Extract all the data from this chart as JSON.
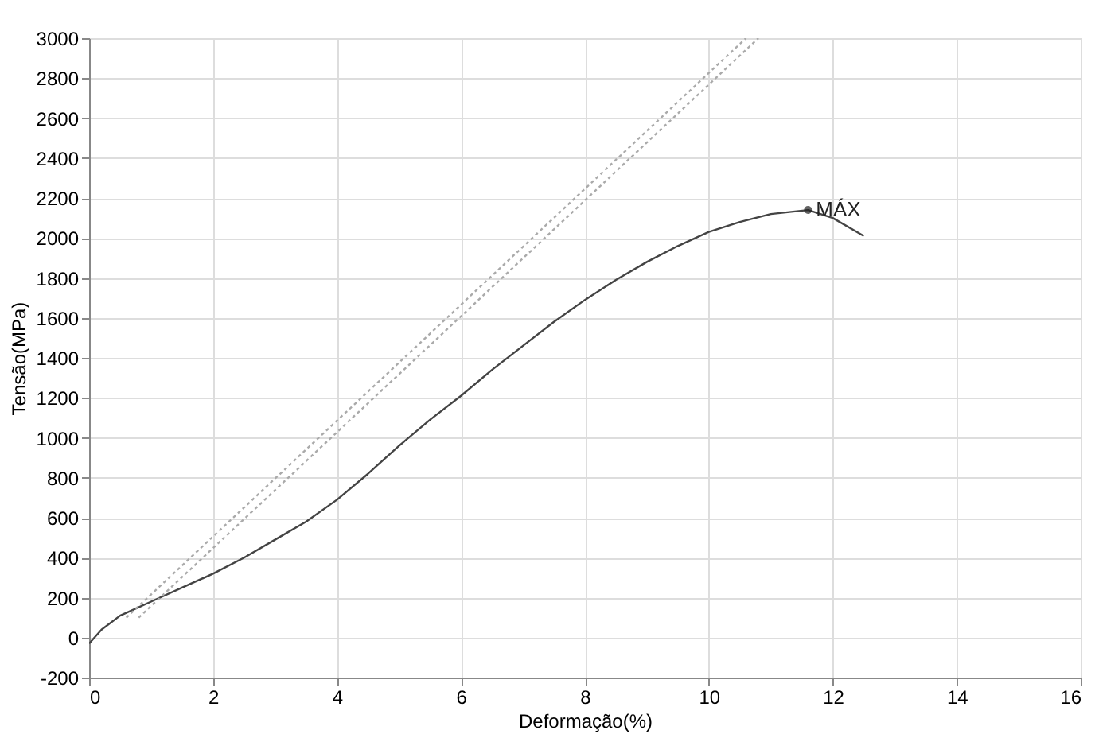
{
  "chart_data": {
    "type": "line",
    "xlabel": "Deformação(%)",
    "ylabel": "Tensão(MPa)",
    "xlim": [
      0,
      16
    ],
    "xticks": [
      0,
      2,
      4,
      6,
      8,
      10,
      12,
      14,
      16
    ],
    "ylim": [
      -200,
      3000
    ],
    "yticks": [
      -200,
      0,
      200,
      400,
      600,
      800,
      1000,
      1200,
      1400,
      1600,
      1800,
      2000,
      2200,
      2400,
      2600,
      2800,
      3000
    ],
    "grid": true,
    "marker": "none",
    "series": [
      {
        "color": "#444444",
        "line_style": "solid",
        "x": [
          0,
          0.2,
          0.5,
          1,
          1.5,
          2,
          2.5,
          3,
          3.5,
          4,
          4.5,
          5,
          5.5,
          6,
          6.5,
          7,
          7.5,
          8,
          8.5,
          9,
          9.5,
          10,
          10.5,
          11,
          11.6,
          12,
          12.5
        ],
        "values": [
          -30,
          40,
          110,
          180,
          250,
          320,
          400,
          490,
          580,
          690,
          820,
          960,
          1090,
          1210,
          1340,
          1460,
          1580,
          1690,
          1790,
          1880,
          1960,
          2030,
          2080,
          2120,
          2140,
          2100,
          2010
        ]
      },
      {
        "color": "#aaaaaa",
        "line_style": "dotted",
        "x": [
          0.6,
          10.6
        ],
        "values": [
          100,
          3000
        ]
      },
      {
        "color": "#aaaaaa",
        "line_style": "dotted",
        "x": [
          0.8,
          10.8
        ],
        "values": [
          100,
          3000
        ]
      },
      {
        "type": "scatter",
        "color": "#222222",
        "marker": "circle",
        "x": [
          11.6
        ],
        "values": [
          2140
        ]
      }
    ],
    "annotations": [
      {
        "text": "MÁX",
        "x": 11.6,
        "y": 2140
      }
    ]
  }
}
